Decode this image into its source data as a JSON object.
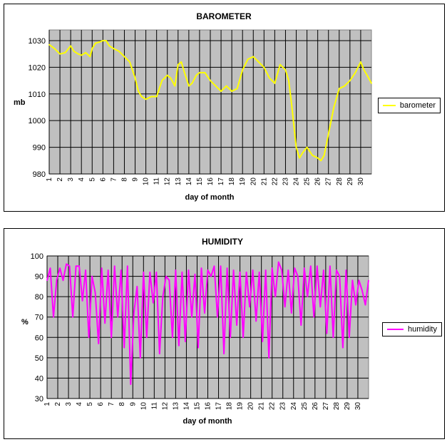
{
  "charts_meta": {
    "baro_title": "BAROMETER",
    "baro_ylabel": "mb",
    "baro_xlabel": "day of month",
    "baro_legend": "barometer",
    "hum_title": "HUMIDITY",
    "hum_ylabel": "%",
    "hum_xlabel": "day of month",
    "hum_legend": "humidity"
  },
  "chart_data": [
    {
      "type": "line",
      "title": "BAROMETER",
      "xlabel": "day of month",
      "ylabel": "mb",
      "xlim": [
        1,
        31
      ],
      "ylim": [
        980,
        1034
      ],
      "y_ticks": [
        980,
        990,
        1000,
        1010,
        1020,
        1030
      ],
      "x_ticks": [
        1,
        2,
        3,
        4,
        5,
        6,
        7,
        8,
        9,
        10,
        11,
        12,
        13,
        14,
        15,
        16,
        17,
        18,
        19,
        20,
        21,
        22,
        23,
        24,
        25,
        26,
        27,
        28,
        29,
        30
      ],
      "grid": true,
      "legend_position": "right",
      "series": [
        {
          "name": "barometer",
          "color": "#ffff00",
          "x": [
            1,
            1.5,
            2,
            2.5,
            3,
            3.3,
            3.7,
            4,
            4.4,
            4.8,
            5,
            5.3,
            5.7,
            6,
            6.3,
            6.6,
            7,
            7.5,
            8,
            8.5,
            9,
            9.3,
            9.6,
            10,
            10.5,
            11,
            11.5,
            12,
            12.3,
            12.7,
            13,
            13.3,
            13.6,
            14,
            14.3,
            14.7,
            15,
            15.5,
            16,
            16.5,
            17,
            17.5,
            18,
            18.5,
            19,
            19.5,
            20,
            20.5,
            21,
            21.5,
            22,
            22.5,
            23,
            23.3,
            23.6,
            24,
            24.3,
            24.6,
            25,
            25.5,
            26,
            26.3,
            26.6,
            27,
            27.5,
            28,
            28.5,
            29,
            29.5,
            30,
            30.3,
            30.6,
            31
          ],
          "values": [
            1028.5,
            1027,
            1025,
            1025.5,
            1028,
            1026,
            1025,
            1024.5,
            1025.5,
            1024,
            1027,
            1029,
            1029.5,
            1030,
            1030,
            1028,
            1027,
            1026,
            1024,
            1022,
            1016,
            1011,
            1009,
            1008,
            1009,
            1009,
            1015,
            1017,
            1016,
            1013,
            1021,
            1022,
            1018,
            1013,
            1014,
            1017,
            1018,
            1018,
            1015,
            1013,
            1011,
            1013,
            1011,
            1012,
            1019,
            1023,
            1024,
            1022,
            1020,
            1016,
            1014,
            1021,
            1019,
            1015,
            1005,
            990,
            986,
            988,
            990,
            987,
            986,
            985,
            987,
            995,
            1005,
            1012,
            1013,
            1015,
            1018,
            1022,
            1019,
            1017,
            1014
          ]
        }
      ]
    },
    {
      "type": "line",
      "title": "HUMIDITY",
      "xlabel": "day of month",
      "ylabel": "%",
      "xlim": [
        1,
        31
      ],
      "ylim": [
        30,
        100
      ],
      "y_ticks": [
        30,
        40,
        50,
        60,
        70,
        80,
        90,
        100
      ],
      "x_ticks": [
        1,
        2,
        3,
        4,
        5,
        6,
        7,
        8,
        9,
        10,
        11,
        12,
        13,
        14,
        15,
        16,
        17,
        18,
        19,
        20,
        21,
        22,
        23,
        24,
        25,
        26,
        27,
        28,
        29,
        30
      ],
      "grid": true,
      "legend_position": "right",
      "series": [
        {
          "name": "humidity",
          "color": "#ff00ff",
          "x": [
            1,
            1.3,
            1.6,
            1.9,
            2.2,
            2.5,
            2.8,
            3.1,
            3.4,
            3.7,
            4,
            4.3,
            4.6,
            4.9,
            5.2,
            5.5,
            5.8,
            6.1,
            6.4,
            6.7,
            7,
            7.3,
            7.6,
            7.9,
            8.2,
            8.5,
            8.8,
            9.1,
            9.4,
            9.7,
            10,
            10.3,
            10.6,
            10.9,
            11.2,
            11.5,
            11.8,
            12.1,
            12.4,
            12.7,
            13,
            13.3,
            13.6,
            13.9,
            14.2,
            14.5,
            14.8,
            15.1,
            15.4,
            15.7,
            16,
            16.3,
            16.6,
            16.9,
            17.2,
            17.5,
            17.8,
            18.1,
            18.4,
            18.7,
            19,
            19.3,
            19.6,
            19.9,
            20.2,
            20.5,
            20.8,
            21.1,
            21.4,
            21.7,
            22,
            22.3,
            22.6,
            22.9,
            23.2,
            23.5,
            23.8,
            24.1,
            24.4,
            24.7,
            25,
            25.3,
            25.6,
            25.9,
            26.2,
            26.5,
            26.8,
            27.1,
            27.4,
            27.7,
            28,
            28.3,
            28.6,
            28.9,
            29.2,
            29.5,
            29.8,
            30.1,
            30.4,
            30.7,
            31
          ],
          "values": [
            88,
            94,
            70,
            88,
            94,
            88,
            96,
            95,
            70,
            95,
            95,
            78,
            93,
            60,
            90,
            82,
            57,
            94,
            67,
            93,
            60,
            95,
            70,
            93,
            55,
            95,
            37,
            72,
            85,
            50,
            92,
            60,
            92,
            77,
            92,
            52,
            80,
            90,
            88,
            60,
            93,
            56,
            92,
            58,
            93,
            70,
            91,
            55,
            94,
            72,
            93,
            90,
            95,
            70,
            95,
            52,
            94,
            60,
            93,
            66,
            92,
            60,
            92,
            75,
            93,
            68,
            92,
            58,
            93,
            50,
            94,
            80,
            97,
            93,
            75,
            93,
            72,
            94,
            90,
            66,
            94,
            80,
            95,
            70,
            95,
            75,
            93,
            62,
            95,
            60,
            93,
            90,
            55,
            93,
            60,
            88,
            76,
            88,
            83,
            76,
            88
          ]
        }
      ]
    }
  ]
}
